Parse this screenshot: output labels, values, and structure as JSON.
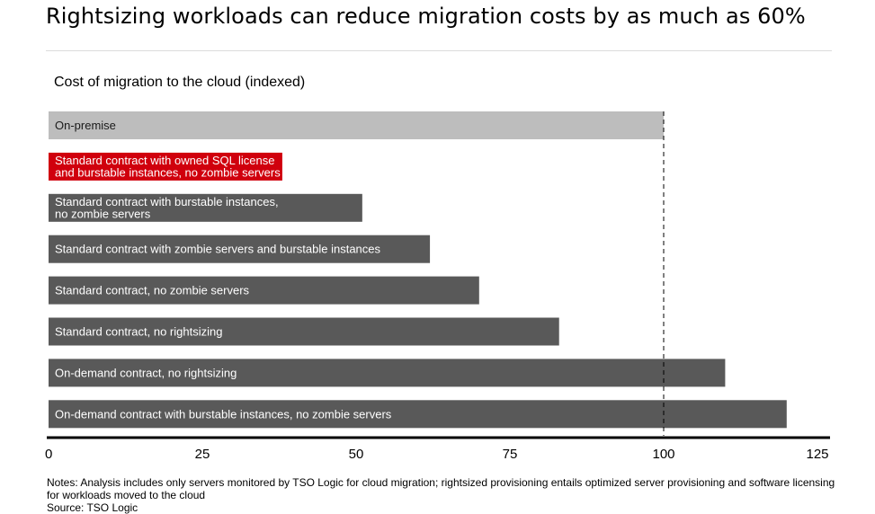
{
  "header": {
    "title": "Rightsizing workloads can reduce migration costs by as much as 60%"
  },
  "notes": "Notes: Analysis includes only servers monitored by TSO Logic for cloud migration; rightsized provisioning entails optimized server provisioning and software licensing for workloads moved to the cloud",
  "source": "Source: TSO Logic",
  "chart_data": {
    "type": "bar",
    "orientation": "horizontal",
    "title": "Cost of migration to the cloud (indexed)",
    "xlim": [
      0,
      125
    ],
    "xticks": [
      0,
      25,
      50,
      75,
      100,
      125
    ],
    "reference_line": 100,
    "grid": false,
    "legend": "none",
    "categories": [
      "On-premise",
      "Standard contract with owned SQL license and burstable instances, no zombie servers",
      "Standard contract with burstable instances, no zombie servers",
      "Standard contract with zombie servers and burstable instances",
      "Standard contract, no zombie servers",
      "Standard contract, no rightsizing",
      "On-demand contract, no rightsizing",
      "On-demand contract with burstable instances, no zombie servers"
    ],
    "label_lines": [
      [
        "On-premise"
      ],
      [
        "Standard contract with owned SQL license",
        "and burstable instances, no zombie servers"
      ],
      [
        "Standard contract with burstable instances,",
        "no zombie servers"
      ],
      [
        "Standard contract with zombie servers and burstable instances"
      ],
      [
        "Standard contract, no zombie servers"
      ],
      [
        "Standard contract, no rightsizing"
      ],
      [
        "On-demand contract, no rightsizing"
      ],
      [
        "On-demand contract with burstable instances, no zombie servers"
      ]
    ],
    "values": [
      100,
      38,
      51,
      62,
      70,
      83,
      110,
      120
    ],
    "colors": {
      "reference": "#bdbdbd",
      "highlight": "#d0000d",
      "default": "#595959",
      "axis": "#000000"
    },
    "bar_roles": [
      "reference",
      "highlight",
      "default",
      "default",
      "default",
      "default",
      "default",
      "default"
    ]
  }
}
